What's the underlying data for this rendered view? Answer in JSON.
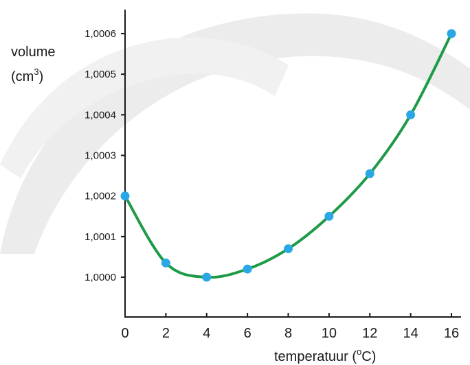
{
  "chart_data": {
    "type": "line",
    "title": "",
    "ylabel": "volume",
    "ylabel_unit": "(cm",
    "ylabel_unit_sup": "3",
    "ylabel_unit_close": ")",
    "xlabel": "temperatuur (",
    "xlabel_sup": "o",
    "xlabel_close": "C)",
    "xlim": [
      0,
      16
    ],
    "ylim": [
      0.99997,
      1.00065
    ],
    "x_ticks": [
      0,
      2,
      4,
      6,
      8,
      10,
      12,
      14,
      16
    ],
    "x_tick_labels": [
      "0",
      "2",
      "4",
      "6",
      "8",
      "10",
      "12",
      "14",
      "16"
    ],
    "y_ticks": [
      1.0,
      1.0001,
      1.0002,
      1.0003,
      1.0004,
      1.0005,
      1.0006
    ],
    "y_tick_labels": [
      "1,0000",
      "1,0001",
      "1,0002",
      "1,0003",
      "1,0004",
      "1,0005",
      "1,0006"
    ],
    "series": [
      {
        "x": [
          0,
          2,
          4,
          6,
          8,
          10,
          12,
          14,
          16
        ],
        "y": [
          1.0002,
          1.000035,
          1.0,
          1.00002,
          1.00007,
          1.00015,
          1.000255,
          1.0004,
          1.0006
        ]
      }
    ],
    "legend": "none",
    "grid": false
  },
  "colors": {
    "line": "#1e9a48",
    "marker": "#2aa8e6",
    "axis": "#1a1a1a",
    "background_arc": "#ececec"
  }
}
